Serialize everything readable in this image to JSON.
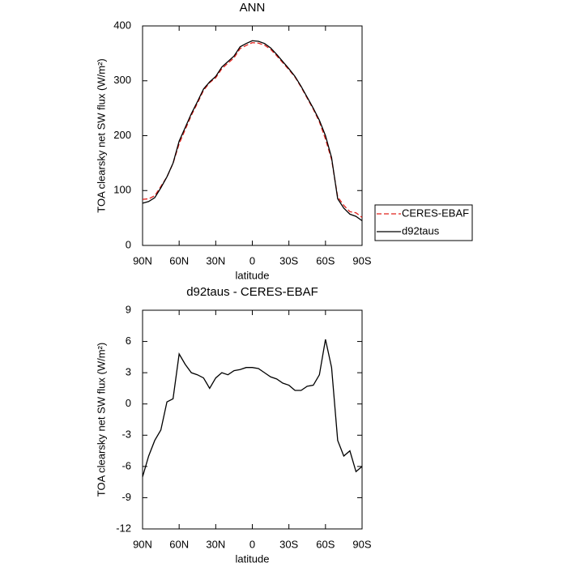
{
  "chart_data": [
    {
      "type": "line",
      "title": "ANN",
      "x_label": "latitude",
      "y_label": "TOA clearsky net SW flux (W/m²)",
      "x": [
        90,
        85,
        80,
        75,
        70,
        65,
        60,
        55,
        50,
        45,
        40,
        35,
        30,
        25,
        20,
        15,
        10,
        5,
        0,
        -5,
        -10,
        -15,
        -20,
        -25,
        -30,
        -35,
        -40,
        -45,
        -50,
        -55,
        -60,
        -65,
        -70,
        -75,
        -80,
        -85,
        -90
      ],
      "series": [
        {
          "name": "CERES-EBAF",
          "color": "#e0201b",
          "dashed": true,
          "values": [
            84,
            85,
            90.5,
            107.5,
            124.8,
            149.5,
            185.2,
            211.2,
            237,
            259.2,
            282.5,
            296.5,
            305.5,
            322,
            332.2,
            341.8,
            358.7,
            364.5,
            369.5,
            368.6,
            365,
            357.4,
            345.6,
            333,
            320.2,
            306.7,
            288.7,
            268.3,
            248.2,
            225.2,
            193.8,
            156.5,
            88.5,
            73,
            61.5,
            59.5,
            51
          ]
        },
        {
          "name": "d92taus",
          "color": "#000000",
          "dashed": false,
          "values": [
            77,
            80,
            87,
            105,
            125,
            150,
            190,
            215,
            240,
            262,
            285,
            298,
            308,
            325,
            335,
            345,
            362,
            368,
            373,
            372,
            368,
            360,
            348,
            335,
            322,
            308,
            290,
            270,
            250,
            228,
            200,
            160,
            85,
            68,
            57,
            53,
            45
          ]
        }
      ],
      "xlim": [
        90,
        -90
      ],
      "xticks": [
        {
          "value": 90,
          "label": "90N"
        },
        {
          "value": 60,
          "label": "60N"
        },
        {
          "value": 30,
          "label": "30N"
        },
        0,
        {
          "value": -30,
          "label": "30S"
        },
        {
          "value": -60,
          "label": "60S"
        },
        {
          "value": -90,
          "label": "90S"
        }
      ],
      "ylim": [
        0,
        400
      ],
      "yticks": [
        0,
        100,
        200,
        300,
        400
      ],
      "legend": "right"
    },
    {
      "type": "line",
      "title": "d92taus - CERES-EBAF",
      "x_label": "latitude",
      "y_label": "TOA clearsky net SW flux (W/m²)",
      "x": [
        90,
        85,
        80,
        75,
        70,
        65,
        60,
        55,
        50,
        45,
        40,
        35,
        30,
        25,
        20,
        15,
        10,
        5,
        0,
        -5,
        -10,
        -15,
        -20,
        -25,
        -30,
        -35,
        -40,
        -45,
        -50,
        -55,
        -60,
        -65,
        -70,
        -75,
        -80,
        -85,
        -90
      ],
      "series": [
        {
          "color": "#000000",
          "dashed": false,
          "values": [
            -7,
            -5,
            -3.5,
            -2.5,
            0.2,
            0.5,
            4.8,
            3.8,
            3,
            2.8,
            2.5,
            1.5,
            2.5,
            3,
            2.8,
            3.2,
            3.3,
            3.5,
            3.5,
            3.4,
            3,
            2.6,
            2.4,
            2,
            1.8,
            1.3,
            1.3,
            1.7,
            1.8,
            2.8,
            6.2,
            3.5,
            -3.5,
            -5,
            -4.5,
            -6.5,
            -6
          ]
        }
      ],
      "xlim": [
        90,
        -90
      ],
      "xticks": [
        {
          "value": 90,
          "label": "90N"
        },
        {
          "value": 60,
          "label": "60N"
        },
        {
          "value": 30,
          "label": "30N"
        },
        0,
        {
          "value": -30,
          "label": "30S"
        },
        {
          "value": -60,
          "label": "60S"
        },
        {
          "value": -90,
          "label": "90S"
        }
      ],
      "ylim": [
        -12,
        9
      ],
      "yticks": [
        -12,
        -9,
        -6,
        -3,
        0,
        3,
        6,
        9
      ]
    }
  ]
}
